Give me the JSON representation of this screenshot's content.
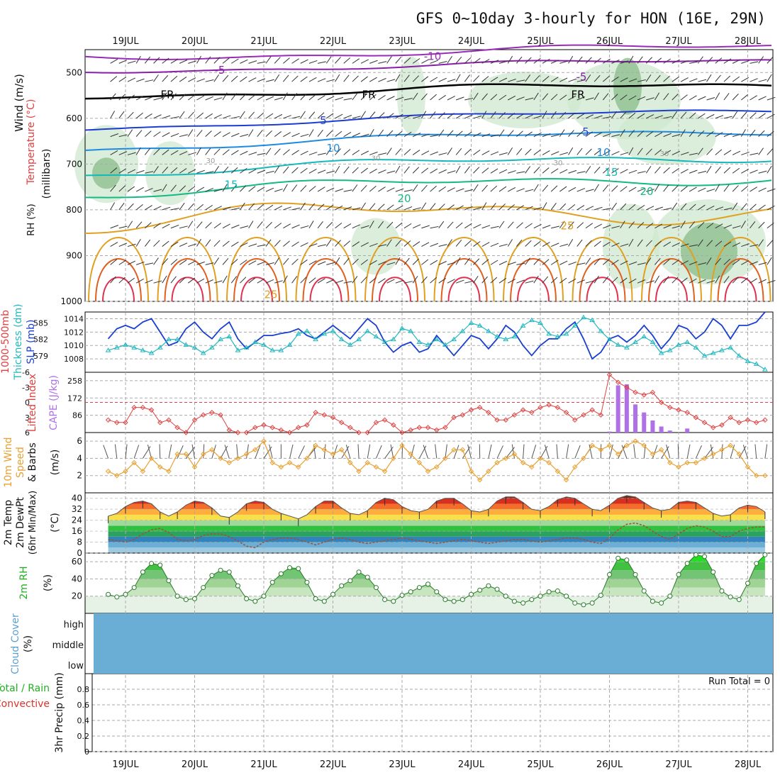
{
  "title": "GFS 0~10day 3-hourly for HON (16E, 29N)",
  "dates": [
    "19JUL",
    "20JUL",
    "21JUL",
    "22JUL",
    "23JUL",
    "24JUL",
    "25JUL",
    "26JUL",
    "27JUL",
    "28JUL"
  ],
  "colors": {
    "temp_minus10": "#9a2bb8",
    "temp_minus5": "#8a1ea8",
    "freezing": "#000000",
    "temp_5": "#1e3cd0",
    "temp_10": "#1e8ae0",
    "temp_15": "#16b8b8",
    "temp_20": "#16b884",
    "temp_25": "#e0a020",
    "hot": "#e06020",
    "hotter": "#e03050",
    "rh_fill": "#cfe8cf",
    "rh_fill_dark": "#8fbf8f",
    "slp": "#1a3fd0",
    "thickness": "#22b8c0",
    "lifted_index": "#e04040",
    "cape": "#b070e8",
    "wind_speed": "#e8a030",
    "dewpoint": "#a0522d",
    "rh2m": "#20b020",
    "cloud": "#6aaed6",
    "grid": "#aaaaaa"
  },
  "panels": {
    "upper": {
      "left_labels": [
        "Wind (m/s)",
        "Temperature (°C)",
        "RH (%)"
      ],
      "axis_label": "(millibars)",
      "pressure_ticks": [
        "500",
        "600",
        "700",
        "800",
        "900",
        "1000"
      ],
      "contour_labels": [
        "-10",
        "-5",
        "-5",
        "FR",
        "FR",
        "FR",
        "5",
        "5",
        "10",
        "10",
        "15",
        "15",
        "20",
        "20",
        "25",
        "25",
        "30",
        "30",
        "30",
        "30"
      ]
    },
    "slp": {
      "left_labels": [
        "1000-500mb",
        "Thickness (dm)",
        "SLP (mb)"
      ],
      "slp_ticks": [
        "1014",
        "1012",
        "1010",
        "1008"
      ],
      "thk_ticks": [
        "585",
        "582",
        "579"
      ]
    },
    "li": {
      "left_labels": [
        "Lifted Index",
        "CAPE (J/kg)"
      ],
      "li_ticks": [
        "-6",
        "-3",
        "0",
        "3",
        "6"
      ],
      "cape_ticks": [
        "258",
        "172",
        "86"
      ]
    },
    "wind": {
      "left_labels": [
        "10m Wind",
        "Speed",
        "& Barbs",
        "(m/s)"
      ],
      "ticks": [
        "6",
        "4",
        "2"
      ]
    },
    "temp": {
      "left_labels": [
        "2m Temp",
        "2m DewPt",
        "(6hr Min/Max)",
        "(°C)"
      ],
      "ticks": [
        "40",
        "32",
        "24",
        "16",
        "8",
        "0"
      ]
    },
    "rh": {
      "left_labels": [
        "2m RH",
        "(%)"
      ],
      "ticks": [
        "60",
        "40",
        "20"
      ]
    },
    "cloud": {
      "left_labels": [
        "Cloud Cover",
        "(%)"
      ],
      "levels": [
        "high",
        "middle",
        "low"
      ]
    },
    "precip": {
      "left_labels": [
        "Total / Rain",
        "Convective",
        "3hr Precip (mm)"
      ],
      "ticks": [
        "0.8",
        "0.6",
        "0.4",
        "0.2",
        "0"
      ],
      "run_total": "Run Total = 0"
    }
  },
  "chart_data": {
    "type": "line",
    "x": [
      "18JUL18",
      "18JUL21",
      "19JUL00",
      "19JUL03",
      "19JUL06",
      "19JUL09",
      "19JUL12",
      "19JUL15",
      "19JUL18",
      "19JUL21",
      "20JUL00",
      "20JUL03",
      "20JUL06",
      "20JUL09",
      "20JUL12",
      "20JUL15",
      "20JUL18",
      "20JUL21",
      "21JUL00",
      "21JUL03",
      "21JUL06",
      "21JUL09",
      "21JUL12",
      "21JUL15",
      "21JUL18",
      "21JUL21",
      "22JUL00",
      "22JUL03",
      "22JUL06",
      "22JUL09",
      "22JUL12",
      "22JUL15",
      "22JUL18",
      "22JUL21",
      "23JUL00",
      "23JUL03",
      "23JUL06",
      "23JUL09",
      "23JUL12",
      "23JUL15",
      "23JUL18",
      "23JUL21",
      "24JUL00",
      "24JUL03",
      "24JUL06",
      "24JUL09",
      "24JUL12",
      "24JUL15",
      "24JUL18",
      "24JUL21",
      "25JUL00",
      "25JUL03",
      "25JUL06",
      "25JUL09",
      "25JUL12",
      "25JUL15",
      "25JUL18",
      "25JUL21",
      "26JUL00",
      "26JUL03",
      "26JUL06",
      "26JUL09",
      "26JUL12",
      "26JUL15",
      "26JUL18",
      "26JUL21",
      "27JUL00",
      "27JUL03",
      "27JUL06",
      "27JUL09",
      "27JUL12",
      "27JUL15",
      "27JUL18",
      "27JUL21",
      "28JUL00",
      "28JUL03",
      "28JUL06"
    ],
    "series": [
      {
        "name": "SLP (mb)",
        "values": [
          1011.0,
          1012.5,
          1013.0,
          1012.5,
          1013.5,
          1014.0,
          1012.0,
          1010.0,
          1010.5,
          1012.5,
          1013.5,
          1012.0,
          1011.0,
          1012.5,
          1013.5,
          1011.0,
          1009.5,
          1010.5,
          1011.5,
          1011.5,
          1011.8,
          1012.0,
          1012.5,
          1011.5,
          1011.0,
          1012.0,
          1013.0,
          1012.0,
          1011.0,
          1012.5,
          1014.0,
          1013.0,
          1010.5,
          1009.0,
          1010.0,
          1010.5,
          1009.0,
          1009.5,
          1011.5,
          1010.0,
          1008.5,
          1010.0,
          1011.5,
          1011.0,
          1009.5,
          1011.0,
          1013.0,
          1012.0,
          1010.0,
          1008.5,
          1010.0,
          1011.0,
          1011.0,
          1012.5,
          1013.5,
          1011.0,
          1008.0,
          1009.0,
          1011.0,
          1011.5,
          1010.5,
          1011.5,
          1013.0,
          1011.5,
          1009.5,
          1011.0,
          1013.0,
          1012.5,
          1011.0,
          1012.0,
          1014.0,
          1013.0,
          1011.0,
          1013.0,
          1013.0,
          1013.5,
          1015.0
        ]
      },
      {
        "name": "1000-500mb Thickness (dm)",
        "values": [
          580.0,
          580.5,
          581.0,
          580.5,
          580.0,
          579.5,
          580.5,
          582.0,
          582.0,
          581.0,
          580.5,
          579.5,
          580.5,
          582.0,
          582.5,
          580.0,
          580.5,
          581.5,
          581.0,
          580.0,
          580.0,
          581.0,
          583.0,
          583.5,
          582.0,
          583.0,
          583.5,
          582.0,
          581.0,
          582.0,
          583.5,
          582.5,
          581.5,
          582.0,
          584.0,
          583.5,
          581.5,
          581.0,
          582.0,
          581.0,
          582.0,
          583.5,
          585.0,
          584.5,
          583.5,
          582.5,
          582.0,
          582.5,
          584.5,
          585.5,
          585.0,
          583.0,
          582.5,
          583.0,
          584.5,
          586.0,
          585.5,
          583.5,
          582.0,
          581.0,
          580.5,
          581.5,
          582.5,
          581.5,
          579.5,
          580.0,
          581.0,
          581.5,
          580.5,
          579.0,
          579.5,
          580.0,
          580.5,
          579.0,
          578.0,
          577.5,
          576.5
        ]
      },
      {
        "name": "Lifted Index",
        "values": [
          3.5,
          4.0,
          4.0,
          1.0,
          1.0,
          1.5,
          4.0,
          3.5,
          5.0,
          6.0,
          3.5,
          2.5,
          2.0,
          2.5,
          5.5,
          6.0,
          6.0,
          5.0,
          4.5,
          5.0,
          5.5,
          6.0,
          5.0,
          4.5,
          2.0,
          2.5,
          3.0,
          4.0,
          5.0,
          6.0,
          6.0,
          4.0,
          3.5,
          4.5,
          6.0,
          5.5,
          5.0,
          5.0,
          5.5,
          5.0,
          3.0,
          2.5,
          1.5,
          1.0,
          2.0,
          3.5,
          3.5,
          2.5,
          1.5,
          2.0,
          1.0,
          0.5,
          1.0,
          2.0,
          3.5,
          2.5,
          1.5,
          2.5,
          -5.5,
          -4.0,
          -3.0,
          -2.0,
          -1.5,
          -2.0,
          0.0,
          1.0,
          1.5,
          2.0,
          3.0,
          4.0,
          5.0,
          4.5,
          3.0,
          4.0,
          3.5,
          4.0,
          3.5
        ]
      },
      {
        "name": "CAPE (J/kg)",
        "values": [
          0,
          0,
          0,
          0,
          0,
          0,
          0,
          0,
          0,
          0,
          0,
          0,
          0,
          0,
          0,
          0,
          0,
          0,
          0,
          0,
          0,
          0,
          0,
          0,
          0,
          0,
          0,
          0,
          0,
          0,
          0,
          0,
          0,
          0,
          0,
          0,
          0,
          0,
          0,
          0,
          0,
          0,
          0,
          0,
          0,
          0,
          0,
          0,
          0,
          0,
          0,
          0,
          0,
          0,
          0,
          0,
          0,
          0,
          5,
          235,
          240,
          140,
          100,
          60,
          30,
          10,
          0,
          20,
          0,
          0,
          0,
          0,
          0,
          0,
          0,
          0,
          0
        ]
      },
      {
        "name": "10m Wind Speed (m/s)",
        "values": [
          2.5,
          2.0,
          2.5,
          3.5,
          2.5,
          4.0,
          3.0,
          2.5,
          4.5,
          4.5,
          3.0,
          4.5,
          5.0,
          4.0,
          3.5,
          4.0,
          4.5,
          5.0,
          6.0,
          3.5,
          3.0,
          3.5,
          3.0,
          4.0,
          5.5,
          5.0,
          4.5,
          5.0,
          3.5,
          2.5,
          3.5,
          3.0,
          2.5,
          4.0,
          5.5,
          4.5,
          3.5,
          2.5,
          3.0,
          4.0,
          5.0,
          5.0,
          2.5,
          1.5,
          2.5,
          3.5,
          4.0,
          4.5,
          3.5,
          3.0,
          4.0,
          3.5,
          2.5,
          1.5,
          3.0,
          4.0,
          5.5,
          5.0,
          5.5,
          4.5,
          5.5,
          6.0,
          5.5,
          4.5,
          5.0,
          3.5,
          3.0,
          3.5,
          3.5,
          4.0,
          4.5,
          5.0,
          5.5,
          4.5,
          3.0,
          2.0,
          2.0
        ]
      },
      {
        "name": "2m Temp (°C)",
        "values": [
          27,
          29,
          34,
          37,
          38,
          36,
          30,
          27,
          30,
          35,
          38,
          37,
          33,
          27,
          26,
          30,
          36,
          38,
          37,
          32,
          29,
          27,
          25,
          28,
          34,
          38,
          38,
          33,
          29,
          28,
          31,
          37,
          40,
          39,
          34,
          31,
          30,
          32,
          38,
          40,
          40,
          36,
          31,
          30,
          32,
          38,
          41,
          41,
          37,
          32,
          31,
          34,
          39,
          41,
          40,
          36,
          32,
          31,
          35,
          40,
          42,
          41,
          37,
          33,
          31,
          32,
          37,
          38,
          37,
          33,
          29,
          27,
          28,
          33,
          35,
          34,
          30
        ]
      },
      {
        "name": "2m DewPt (°C)",
        "values": [
          10,
          9,
          8,
          10,
          14,
          17,
          18,
          15,
          10,
          9,
          10,
          13,
          14,
          14,
          12,
          9,
          5,
          4,
          8,
          10,
          11,
          11,
          10,
          8,
          6,
          8,
          10,
          11,
          10,
          8,
          7,
          8,
          9,
          10,
          11,
          10,
          9,
          8,
          7,
          8,
          9,
          10,
          9,
          8,
          7,
          8,
          9,
          10,
          10,
          9,
          8,
          9,
          10,
          11,
          11,
          10,
          8,
          7,
          11,
          17,
          21,
          22,
          20,
          16,
          12,
          10,
          14,
          18,
          20,
          19,
          16,
          12,
          12,
          16,
          18,
          19,
          19
        ]
      },
      {
        "name": "2m RH (%)",
        "values": [
          22,
          19,
          22,
          30,
          48,
          58,
          56,
          38,
          20,
          16,
          17,
          30,
          44,
          50,
          48,
          32,
          17,
          14,
          20,
          36,
          46,
          53,
          52,
          36,
          17,
          14,
          22,
          32,
          38,
          48,
          42,
          30,
          16,
          14,
          21,
          25,
          30,
          34,
          25,
          16,
          14,
          16,
          22,
          27,
          32,
          28,
          20,
          14,
          12,
          16,
          20,
          25,
          26,
          20,
          12,
          10,
          12,
          21,
          45,
          64,
          62,
          45,
          26,
          14,
          12,
          20,
          45,
          58,
          68,
          66,
          48,
          26,
          19,
          16,
          35,
          58,
          68
        ]
      },
      {
        "name": "3hr Precip (mm)",
        "values": [
          0,
          0,
          0,
          0,
          0,
          0,
          0,
          0,
          0,
          0,
          0,
          0,
          0,
          0,
          0,
          0,
          0,
          0,
          0,
          0,
          0,
          0,
          0,
          0,
          0,
          0,
          0,
          0,
          0,
          0,
          0,
          0,
          0,
          0,
          0,
          0,
          0,
          0,
          0,
          0,
          0,
          0,
          0,
          0,
          0,
          0,
          0,
          0,
          0,
          0,
          0,
          0,
          0,
          0,
          0,
          0,
          0,
          0,
          0,
          0,
          0,
          0,
          0,
          0,
          0,
          0,
          0,
          0,
          0,
          0,
          0,
          0,
          0,
          0,
          0,
          0,
          0
        ]
      }
    ],
    "slp_ylim": [
      1006,
      1015
    ],
    "thickness_ylim": [
      576,
      587
    ],
    "li_ylim": [
      6,
      -6
    ],
    "cape_ylim": [
      0,
      258
    ],
    "wind_ylim": [
      0,
      7
    ],
    "temp_ylim": [
      0,
      44
    ],
    "rh_ylim": [
      0,
      70
    ],
    "precip_ylim": [
      0,
      1.0
    ],
    "pressure_ylim": [
      450,
      1000
    ],
    "grid": true
  }
}
